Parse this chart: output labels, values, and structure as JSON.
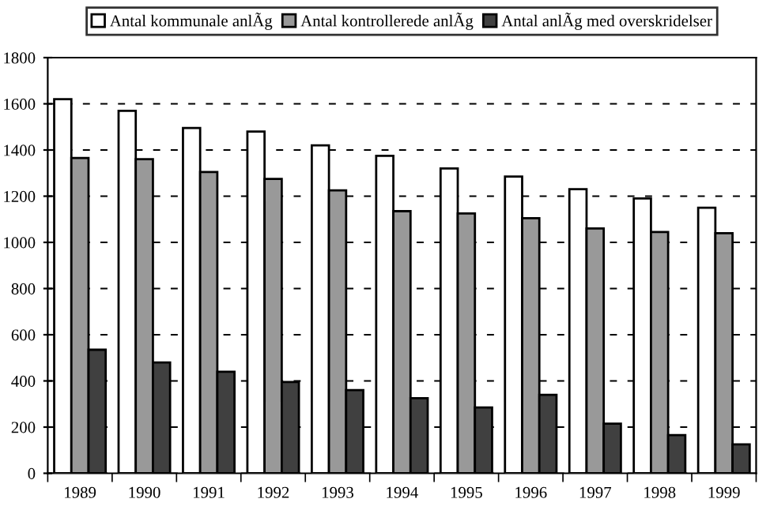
{
  "chart_data": {
    "type": "bar",
    "categories": [
      "1989",
      "1990",
      "1991",
      "1992",
      "1993",
      "1994",
      "1995",
      "1996",
      "1997",
      "1998",
      "1999"
    ],
    "series": [
      {
        "name": "Antal kommunale anlÃg",
        "color": "#ffffff",
        "values": [
          1620,
          1570,
          1495,
          1480,
          1420,
          1375,
          1320,
          1285,
          1230,
          1190,
          1150
        ]
      },
      {
        "name": "Antal kontrollerede anlÃg",
        "color": "#999999",
        "values": [
          1365,
          1360,
          1305,
          1275,
          1225,
          1135,
          1125,
          1105,
          1060,
          1045,
          1040
        ]
      },
      {
        "name": "Antal anlÃg med overskridelser",
        "color": "#404040",
        "values": [
          535,
          480,
          440,
          395,
          360,
          325,
          285,
          340,
          215,
          165,
          125
        ]
      }
    ],
    "ylim": [
      0,
      1800
    ],
    "yticks": [
      0,
      200,
      400,
      600,
      800,
      1000,
      1200,
      1400,
      1600,
      1800
    ],
    "grid": "y",
    "legend": "top"
  }
}
